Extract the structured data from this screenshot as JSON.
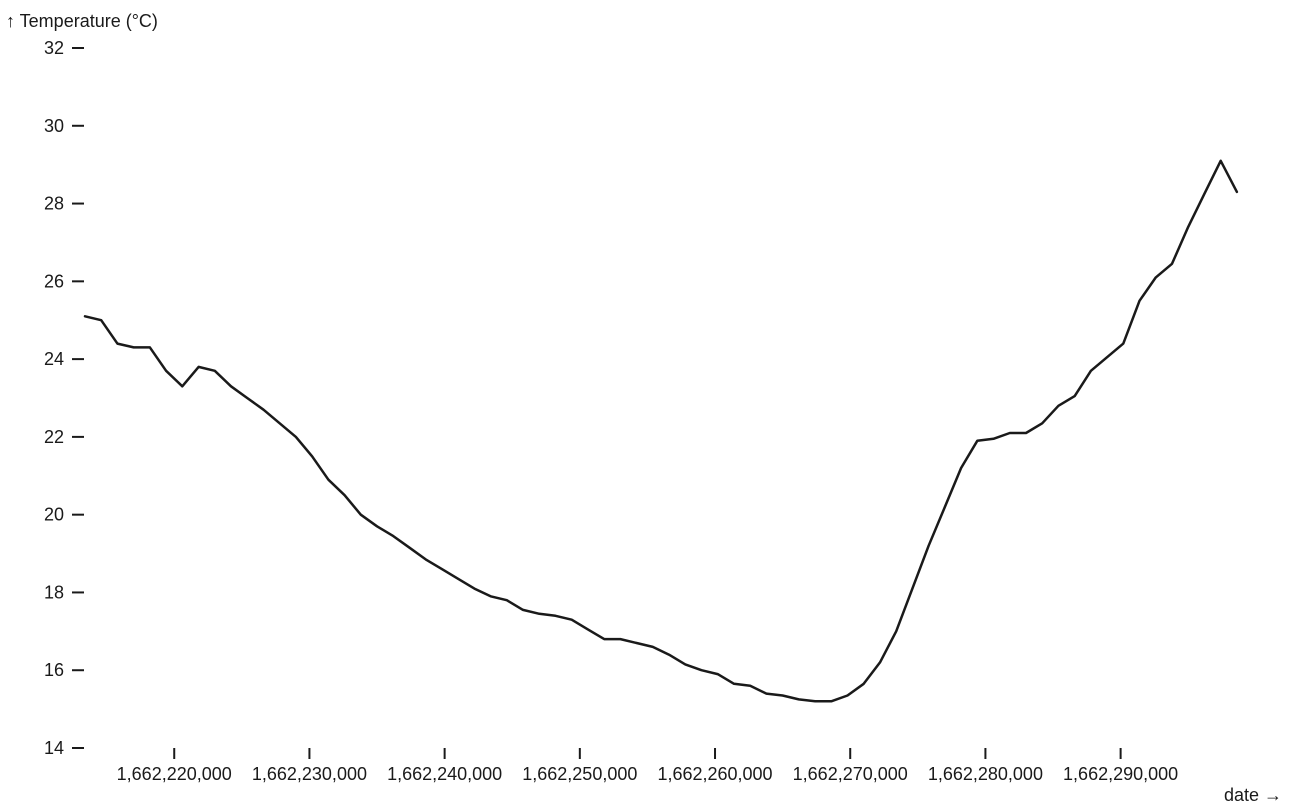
{
  "chart_data": {
    "type": "line",
    "title": "",
    "xlabel": "date →",
    "ylabel": "↑ Temperature  (°C)",
    "x_ticks": [
      {
        "value": 1662220000,
        "label": "1,662,220,000"
      },
      {
        "value": 1662230000,
        "label": "1,662,230,000"
      },
      {
        "value": 1662240000,
        "label": "1,662,240,000"
      },
      {
        "value": 1662250000,
        "label": "1,662,250,000"
      },
      {
        "value": 1662260000,
        "label": "1,662,260,000"
      },
      {
        "value": 1662270000,
        "label": "1,662,270,000"
      },
      {
        "value": 1662280000,
        "label": "1,662,280,000"
      },
      {
        "value": 1662290000,
        "label": "1,662,290,000"
      }
    ],
    "y_ticks": [
      {
        "value": 14,
        "label": "14"
      },
      {
        "value": 16,
        "label": "16"
      },
      {
        "value": 18,
        "label": "18"
      },
      {
        "value": 20,
        "label": "20"
      },
      {
        "value": 22,
        "label": "22"
      },
      {
        "value": 24,
        "label": "24"
      },
      {
        "value": 26,
        "label": "26"
      },
      {
        "value": 28,
        "label": "28"
      },
      {
        "value": 30,
        "label": "30"
      },
      {
        "value": 32,
        "label": "32"
      }
    ],
    "xlim": [
      1662213400,
      1662299200
    ],
    "ylim": [
      14,
      32
    ],
    "grid": false,
    "series": [
      {
        "color": "#1a1a1a",
        "x": [
          1662213400,
          1662214600,
          1662215800,
          1662217000,
          1662218200,
          1662219400,
          1662220600,
          1662221800,
          1662223000,
          1662224200,
          1662225400,
          1662226600,
          1662227800,
          1662229000,
          1662230200,
          1662231400,
          1662232600,
          1662233800,
          1662235000,
          1662236200,
          1662237400,
          1662238600,
          1662239800,
          1662241000,
          1662242200,
          1662243400,
          1662244600,
          1662245800,
          1662247000,
          1662248200,
          1662249400,
          1662250600,
          1662251800,
          1662253000,
          1662254200,
          1662255400,
          1662256600,
          1662257800,
          1662259000,
          1662260200,
          1662261400,
          1662262600,
          1662263800,
          1662265000,
          1662266200,
          1662267400,
          1662268600,
          1662269800,
          1662271000,
          1662272200,
          1662273400,
          1662274600,
          1662275800,
          1662277000,
          1662278200,
          1662279400,
          1662280600,
          1662281800,
          1662283000,
          1662284200,
          1662285400,
          1662286600,
          1662287800,
          1662289000,
          1662290200,
          1662291400,
          1662292600,
          1662293800,
          1662295000,
          1662296200,
          1662297400,
          1662298600
        ],
        "values": [
          25.1,
          25.0,
          24.4,
          24.3,
          24.3,
          23.7,
          23.3,
          23.8,
          23.7,
          23.3,
          23.0,
          22.7,
          22.35,
          22.0,
          21.5,
          20.9,
          20.5,
          20.0,
          19.7,
          19.45,
          19.15,
          18.85,
          18.6,
          18.35,
          18.1,
          17.9,
          17.8,
          17.55,
          17.45,
          17.4,
          17.3,
          17.05,
          16.8,
          16.8,
          16.7,
          16.6,
          16.4,
          16.15,
          16.0,
          15.9,
          15.65,
          15.6,
          15.4,
          15.35,
          15.25,
          15.2,
          15.2,
          15.35,
          15.65,
          16.2,
          17.0,
          18.1,
          19.2,
          20.2,
          21.2,
          21.9,
          21.95,
          22.1,
          22.1,
          22.35,
          22.8,
          23.05,
          23.7,
          24.05,
          24.4,
          25.5,
          26.1,
          26.45,
          27.4,
          28.25,
          29.1,
          28.3
        ]
      }
    ]
  }
}
